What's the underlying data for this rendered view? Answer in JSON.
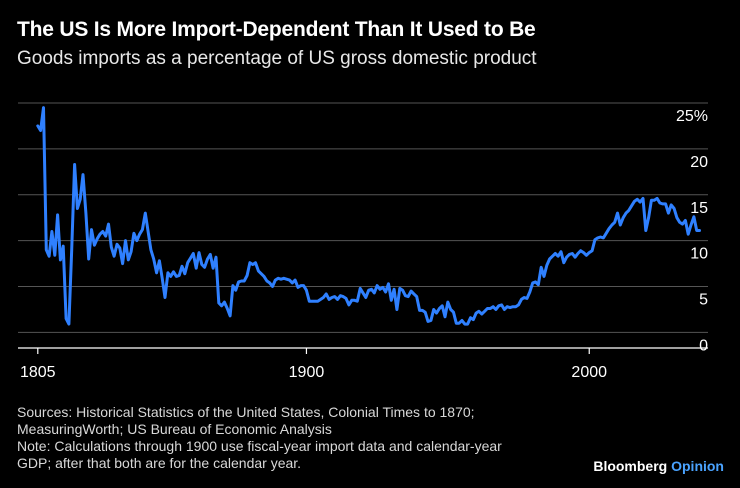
{
  "header": {
    "title": "The US Is More Import-Dependent Than It Used to Be",
    "subtitle": "Goods imports as a percentage of US gross domestic product"
  },
  "footer": {
    "sources_line1": "Sources: Historical Statistics of the United States, Colonial Times to 1870;",
    "sources_line2": "MeasuringWorth; US Bureau of Economic Analysis",
    "note_line1": "Note: Calculations through 1900 use fiscal-year import data and calendar-year",
    "note_line2": "GDP; after that both are for the calendar year.",
    "brand_main": "Bloomberg",
    "brand_accent": "Opinion"
  },
  "colors": {
    "background": "#000000",
    "line": "#2f80ff",
    "grid": "#555555",
    "text": "#ffffff",
    "brand_accent": "#4aa3ff"
  },
  "chart_data": {
    "type": "line",
    "title": "The US Is More Import-Dependent Than It Used to Be",
    "subtitle": "Goods imports as a percentage of US gross domestic product",
    "xlabel": "",
    "ylabel": "",
    "xlim": [
      1798,
      2042
    ],
    "ylim": [
      -1.7,
      25
    ],
    "x_ticks": [
      1805,
      1900,
      2000
    ],
    "y_ticks": [
      0,
      5,
      10,
      15,
      20,
      25
    ],
    "y_tick_labels": [
      "0",
      "5",
      "10",
      "15",
      "20",
      "25%"
    ],
    "y_axis_position": "right",
    "grid": "horizontal",
    "series": [
      {
        "values": [
          [
            1805,
            22.5
          ],
          [
            1806,
            22.0
          ],
          [
            1807,
            24.5
          ],
          [
            1808,
            9.0
          ],
          [
            1809,
            8.3
          ],
          [
            1810,
            11.0
          ],
          [
            1811,
            8.4
          ],
          [
            1812,
            12.8
          ],
          [
            1813,
            7.9
          ],
          [
            1814,
            9.4
          ],
          [
            1815,
            1.5
          ],
          [
            1816,
            0.9
          ],
          [
            1817,
            9.0
          ],
          [
            1818,
            18.3
          ],
          [
            1819,
            13.5
          ],
          [
            1820,
            14.5
          ],
          [
            1821,
            17.2
          ],
          [
            1822,
            13.0
          ],
          [
            1823,
            8.0
          ],
          [
            1824,
            11.2
          ],
          [
            1825,
            9.5
          ],
          [
            1826,
            10.2
          ],
          [
            1827,
            10.7
          ],
          [
            1828,
            11.0
          ],
          [
            1829,
            10.5
          ],
          [
            1830,
            11.8
          ],
          [
            1831,
            9.3
          ],
          [
            1832,
            8.3
          ],
          [
            1833,
            9.6
          ],
          [
            1834,
            9.2
          ],
          [
            1835,
            7.5
          ],
          [
            1836,
            10.0
          ],
          [
            1837,
            7.9
          ],
          [
            1838,
            8.8
          ],
          [
            1839,
            10.8
          ],
          [
            1840,
            10.0
          ],
          [
            1841,
            10.7
          ],
          [
            1842,
            11.2
          ],
          [
            1843,
            13.0
          ],
          [
            1844,
            11.0
          ],
          [
            1845,
            9.0
          ],
          [
            1846,
            8.0
          ],
          [
            1847,
            6.5
          ],
          [
            1848,
            7.8
          ],
          [
            1849,
            5.9
          ],
          [
            1850,
            3.8
          ],
          [
            1851,
            6.5
          ],
          [
            1852,
            6.1
          ],
          [
            1853,
            6.6
          ],
          [
            1854,
            6.1
          ],
          [
            1855,
            6.2
          ],
          [
            1856,
            7.2
          ],
          [
            1857,
            6.4
          ],
          [
            1858,
            7.6
          ],
          [
            1859,
            8.1
          ],
          [
            1860,
            8.6
          ],
          [
            1861,
            7.0
          ],
          [
            1862,
            8.7
          ],
          [
            1863,
            7.4
          ],
          [
            1864,
            7.1
          ],
          [
            1865,
            8.0
          ],
          [
            1866,
            8.5
          ],
          [
            1867,
            7.0
          ],
          [
            1868,
            8.2
          ],
          [
            1869,
            3.2
          ],
          [
            1870,
            2.9
          ],
          [
            1871,
            3.3
          ],
          [
            1872,
            2.6
          ],
          [
            1873,
            1.8
          ],
          [
            1874,
            5.1
          ],
          [
            1875,
            4.6
          ],
          [
            1876,
            5.5
          ],
          [
            1877,
            5.6
          ],
          [
            1878,
            5.6
          ],
          [
            1879,
            6.2
          ],
          [
            1880,
            7.6
          ],
          [
            1881,
            7.4
          ],
          [
            1882,
            7.6
          ],
          [
            1883,
            6.7
          ],
          [
            1884,
            6.4
          ],
          [
            1885,
            6.1
          ],
          [
            1886,
            5.6
          ],
          [
            1887,
            5.4
          ],
          [
            1888,
            5.0
          ],
          [
            1889,
            5.7
          ],
          [
            1890,
            5.9
          ],
          [
            1891,
            5.8
          ],
          [
            1892,
            5.9
          ],
          [
            1893,
            5.8
          ],
          [
            1894,
            5.7
          ],
          [
            1895,
            5.4
          ],
          [
            1896,
            5.7
          ],
          [
            1897,
            4.9
          ],
          [
            1898,
            5.1
          ],
          [
            1899,
            5.1
          ],
          [
            1900,
            4.6
          ],
          [
            1901,
            3.4
          ],
          [
            1902,
            3.4
          ],
          [
            1903,
            3.4
          ],
          [
            1904,
            3.4
          ],
          [
            1905,
            3.6
          ],
          [
            1906,
            3.8
          ],
          [
            1907,
            4.2
          ],
          [
            1908,
            3.6
          ],
          [
            1909,
            3.8
          ],
          [
            1910,
            3.9
          ],
          [
            1911,
            3.6
          ],
          [
            1912,
            4.0
          ],
          [
            1913,
            3.9
          ],
          [
            1914,
            3.7
          ],
          [
            1915,
            3.0
          ],
          [
            1916,
            3.5
          ],
          [
            1917,
            3.5
          ],
          [
            1918,
            3.4
          ],
          [
            1919,
            4.8
          ],
          [
            1920,
            4.3
          ],
          [
            1921,
            3.8
          ],
          [
            1922,
            4.6
          ],
          [
            1923,
            4.7
          ],
          [
            1924,
            4.3
          ],
          [
            1925,
            5.1
          ],
          [
            1926,
            4.7
          ],
          [
            1927,
            4.9
          ],
          [
            1928,
            4.4
          ],
          [
            1929,
            5.3
          ],
          [
            1930,
            3.5
          ],
          [
            1931,
            4.7
          ],
          [
            1932,
            2.5
          ],
          [
            1933,
            4.8
          ],
          [
            1934,
            4.6
          ],
          [
            1935,
            4.0
          ],
          [
            1936,
            3.9
          ],
          [
            1937,
            4.5
          ],
          [
            1938,
            4.2
          ],
          [
            1939,
            3.9
          ],
          [
            1940,
            2.4
          ],
          [
            1941,
            2.4
          ],
          [
            1942,
            2.2
          ],
          [
            1943,
            1.2
          ],
          [
            1944,
            1.3
          ],
          [
            1945,
            2.5
          ],
          [
            1946,
            2.1
          ],
          [
            1947,
            2.6
          ],
          [
            1948,
            2.9
          ],
          [
            1949,
            1.7
          ],
          [
            1950,
            3.3
          ],
          [
            1951,
            2.5
          ],
          [
            1952,
            2.2
          ],
          [
            1953,
            1.0
          ],
          [
            1954,
            1.0
          ],
          [
            1955,
            1.3
          ],
          [
            1956,
            0.9
          ],
          [
            1957,
            0.9
          ],
          [
            1958,
            1.6
          ],
          [
            1959,
            1.4
          ],
          [
            1960,
            2.1
          ],
          [
            1961,
            2.3
          ],
          [
            1962,
            2.0
          ],
          [
            1963,
            2.3
          ],
          [
            1964,
            2.6
          ],
          [
            1965,
            2.6
          ],
          [
            1966,
            2.8
          ],
          [
            1967,
            2.5
          ],
          [
            1968,
            2.9
          ],
          [
            1969,
            3.0
          ],
          [
            1970,
            2.5
          ],
          [
            1971,
            2.8
          ],
          [
            1972,
            2.7
          ],
          [
            1973,
            2.8
          ],
          [
            1974,
            2.8
          ],
          [
            1975,
            3.0
          ],
          [
            1976,
            3.6
          ],
          [
            1977,
            3.8
          ],
          [
            1978,
            3.7
          ],
          [
            1979,
            4.4
          ],
          [
            1980,
            5.4
          ],
          [
            1981,
            5.5
          ],
          [
            1982,
            5.2
          ],
          [
            1983,
            7.1
          ],
          [
            1984,
            6.1
          ],
          [
            1985,
            7.3
          ],
          [
            1986,
            8.0
          ],
          [
            1987,
            8.3
          ],
          [
            1988,
            8.6
          ],
          [
            1989,
            8.3
          ],
          [
            1990,
            8.8
          ],
          [
            1991,
            7.6
          ],
          [
            1992,
            8.2
          ],
          [
            1993,
            8.5
          ],
          [
            1994,
            8.6
          ],
          [
            1995,
            8.2
          ],
          [
            1996,
            8.6
          ],
          [
            1997,
            8.9
          ],
          [
            1998,
            8.7
          ],
          [
            1999,
            8.4
          ],
          [
            2000,
            8.7
          ],
          [
            2001,
            8.9
          ],
          [
            2002,
            10.1
          ],
          [
            2003,
            10.3
          ],
          [
            2004,
            10.4
          ],
          [
            2005,
            10.3
          ],
          [
            2006,
            10.8
          ],
          [
            2007,
            11.3
          ],
          [
            2008,
            11.7
          ],
          [
            2009,
            12.0
          ],
          [
            2010,
            13.0
          ],
          [
            2011,
            11.7
          ],
          [
            2012,
            12.5
          ],
          [
            2013,
            13.0
          ],
          [
            2014,
            13.3
          ],
          [
            2015,
            13.8
          ],
          [
            2016,
            14.3
          ],
          [
            2017,
            14.5
          ],
          [
            2018,
            14.2
          ],
          [
            2019,
            14.6
          ],
          [
            2020,
            11.1
          ],
          [
            2021,
            12.5
          ],
          [
            2022,
            14.4
          ],
          [
            2023,
            14.4
          ],
          [
            2024,
            14.6
          ],
          [
            2025,
            14.1
          ],
          [
            2026,
            14.0
          ],
          [
            2027,
            14.0
          ],
          [
            2028,
            13.0
          ],
          [
            2029,
            13.9
          ],
          [
            2030,
            13.5
          ],
          [
            2031,
            12.5
          ],
          [
            2032,
            12.0
          ],
          [
            2033,
            11.8
          ],
          [
            2034,
            12.2
          ],
          [
            2035,
            10.7
          ],
          [
            2036,
            11.7
          ],
          [
            2037,
            12.6
          ],
          [
            2038,
            11.1
          ],
          [
            2039,
            11.1
          ]
        ]
      }
    ]
  }
}
